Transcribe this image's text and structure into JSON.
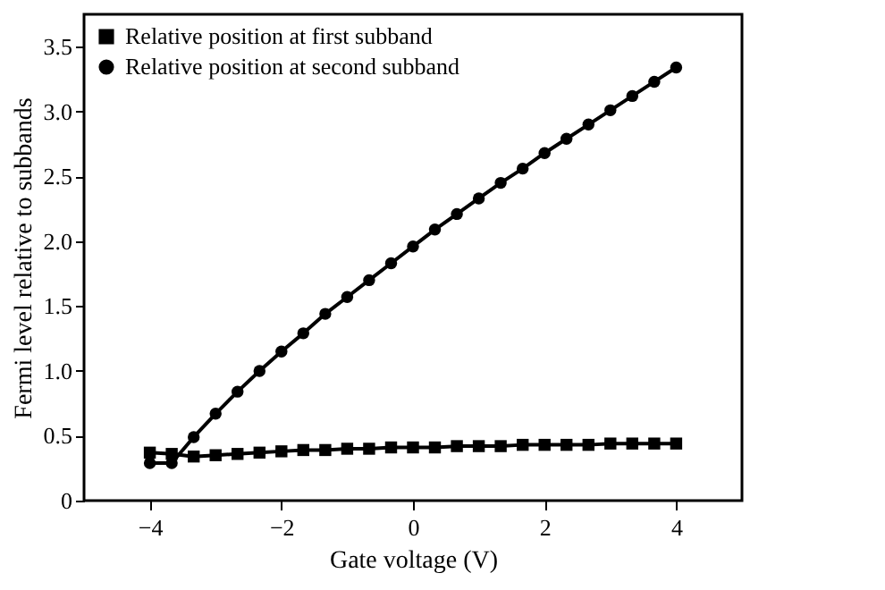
{
  "chart_data": {
    "type": "line",
    "xlabel": "Gate voltage (V)",
    "ylabel": "Fermi level relative to subbands",
    "x": [
      -4,
      -3.667,
      -3.333,
      -3,
      -2.667,
      -2.333,
      -2,
      -1.667,
      -1.333,
      -1,
      -0.667,
      -0.333,
      0,
      0.333,
      0.667,
      1,
      1.333,
      1.667,
      2,
      2.333,
      2.667,
      3,
      3.333,
      3.667,
      4
    ],
    "series": [
      {
        "name": "Relative position at first subband",
        "color": "#000000",
        "marker": "square",
        "values": [
          0.37,
          0.36,
          0.34,
          0.35,
          0.36,
          0.37,
          0.38,
          0.39,
          0.39,
          0.4,
          0.4,
          0.41,
          0.41,
          0.41,
          0.42,
          0.42,
          0.42,
          0.43,
          0.43,
          0.43,
          0.43,
          0.44,
          0.44,
          0.44,
          0.44
        ]
      },
      {
        "name": "Relative position at second subband",
        "color": "#000000",
        "marker": "circle",
        "values": [
          0.29,
          0.29,
          0.49,
          0.67,
          0.84,
          1.0,
          1.15,
          1.29,
          1.44,
          1.57,
          1.7,
          1.83,
          1.96,
          2.09,
          2.21,
          2.33,
          2.45,
          2.56,
          2.68,
          2.79,
          2.9,
          3.01,
          3.12,
          3.23,
          3.34
        ]
      }
    ],
    "xlim": [
      -5,
      5
    ],
    "xticks": [
      -4,
      -2,
      0,
      2,
      4
    ],
    "ylim": [
      0,
      3.75
    ],
    "yticks": [
      0,
      0.5,
      {
        "value": 1,
        "label": "1.0"
      },
      1.5,
      {
        "value": 2,
        "label": "2.0"
      },
      2.5,
      {
        "value": 3,
        "label": "3.0"
      },
      3.5
    ],
    "grid": false,
    "legend": "top left",
    "line_style": "solid"
  }
}
